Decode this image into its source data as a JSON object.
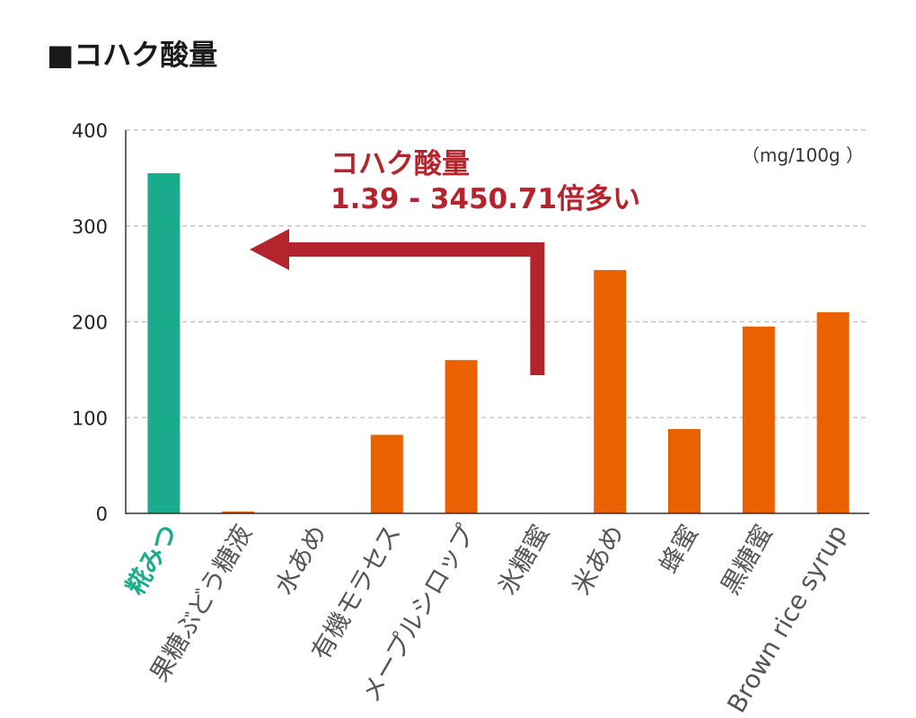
{
  "page": {
    "title": "■コハク酸量"
  },
  "chart_data": {
    "type": "bar",
    "categories": [
      "糀みつ",
      "果糖ぶどう糖液",
      "水あめ",
      "有機モラセス",
      "メープルシロップ",
      "氷糖蜜",
      "米あめ",
      "蜂蜜",
      "黒糖蜜",
      "Brown rice syrup"
    ],
    "values": [
      355,
      2,
      0,
      82,
      160,
      0,
      254,
      88,
      195,
      210
    ],
    "unit_label": "（mg/100g ）",
    "ylim": [
      0,
      400
    ],
    "yticks": [
      0,
      100,
      200,
      300,
      400
    ],
    "grid": true,
    "colors": {
      "highlight": "#1aab8c",
      "bar": "#ea6103",
      "annotation": "#b3242c",
      "axis": "#333333",
      "grid": "#bbbbbb",
      "label": "#555555"
    },
    "highlight_index": 0,
    "annotation": {
      "line1": "コハク酸量",
      "line2": "1.39 - 3450.71倍多い"
    }
  }
}
